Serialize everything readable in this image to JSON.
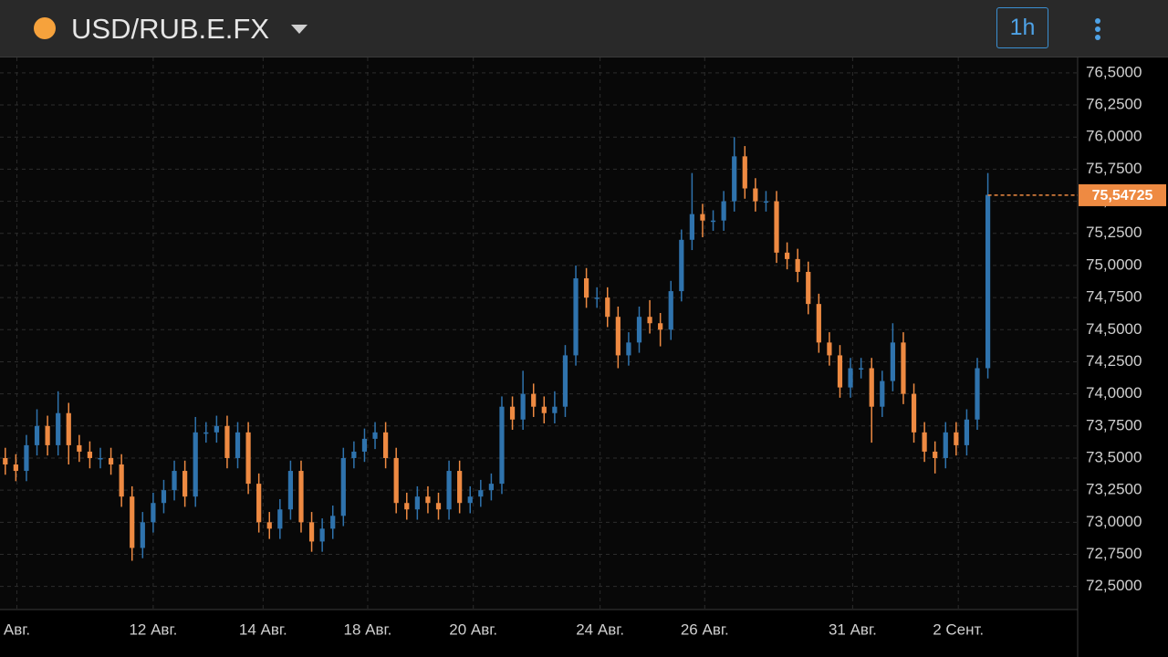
{
  "header": {
    "symbol": "USD/RUB.E.FX",
    "interval": "1h"
  },
  "chart_data": {
    "type": "candlestick",
    "up_color": "#2f73ad",
    "down_color": "#ee8a42",
    "grid": true,
    "ylim": [
      72.32,
      76.62
    ],
    "yticks": [
      {
        "value": 72.5,
        "label": "72,5000"
      },
      {
        "value": 72.75,
        "label": "72,7500"
      },
      {
        "value": 73,
        "label": "73,0000"
      },
      {
        "value": 73.25,
        "label": "73,2500"
      },
      {
        "value": 73.5,
        "label": "73,5000"
      },
      {
        "value": 73.75,
        "label": "73,7500"
      },
      {
        "value": 74,
        "label": "74,0000"
      },
      {
        "value": 74.25,
        "label": "74,2500"
      },
      {
        "value": 74.5,
        "label": "74,5000"
      },
      {
        "value": 74.75,
        "label": "74,7500"
      },
      {
        "value": 75,
        "label": "75,0000"
      },
      {
        "value": 75.25,
        "label": "75,2500"
      },
      {
        "value": 75.5,
        "label": "75,5000"
      },
      {
        "value": 75.75,
        "label": "75,7500"
      },
      {
        "value": 76,
        "label": "76,0000"
      },
      {
        "value": 76.25,
        "label": "76,2500"
      },
      {
        "value": 76.5,
        "label": "76,5000"
      }
    ],
    "xlim": [
      0,
      102
    ],
    "xticks": [
      {
        "value": 1.6,
        "label": "Авг."
      },
      {
        "value": 14.5,
        "label": "12 Авг."
      },
      {
        "value": 24.9,
        "label": "14 Авг."
      },
      {
        "value": 34.8,
        "label": "18 Авг."
      },
      {
        "value": 44.8,
        "label": "20 Авг."
      },
      {
        "value": 56.8,
        "label": "24 Авг."
      },
      {
        "value": 66.7,
        "label": "26 Авг."
      },
      {
        "value": 80.7,
        "label": "31 Авг."
      },
      {
        "value": 90.7,
        "label": "2 Сент."
      }
    ],
    "last_price": {
      "value": 75.54725,
      "label": "75,54725"
    },
    "ohlc": [
      [
        73.5,
        73.58,
        73.37,
        73.45
      ],
      [
        73.45,
        73.53,
        73.32,
        73.4
      ],
      [
        73.4,
        73.68,
        73.32,
        73.6
      ],
      [
        73.6,
        73.88,
        73.52,
        73.75
      ],
      [
        73.75,
        73.83,
        73.52,
        73.6
      ],
      [
        73.6,
        74.02,
        73.52,
        73.85
      ],
      [
        73.85,
        73.93,
        73.45,
        73.6
      ],
      [
        73.6,
        73.68,
        73.47,
        73.55
      ],
      [
        73.55,
        73.63,
        73.42,
        73.5
      ],
      [
        73.5,
        73.58,
        73.42,
        73.5
      ],
      [
        73.5,
        73.58,
        73.37,
        73.45
      ],
      [
        73.45,
        73.53,
        73.12,
        73.2
      ],
      [
        73.2,
        73.28,
        72.7,
        72.8
      ],
      [
        72.8,
        73.08,
        72.72,
        73.0
      ],
      [
        73.0,
        73.23,
        72.92,
        73.15
      ],
      [
        73.15,
        73.33,
        73.07,
        73.25
      ],
      [
        73.25,
        73.48,
        73.17,
        73.4
      ],
      [
        73.4,
        73.48,
        73.12,
        73.2
      ],
      [
        73.2,
        73.82,
        73.12,
        73.7
      ],
      [
        73.7,
        73.78,
        73.62,
        73.7
      ],
      [
        73.7,
        73.83,
        73.62,
        73.75
      ],
      [
        73.75,
        73.83,
        73.42,
        73.5
      ],
      [
        73.5,
        73.78,
        73.42,
        73.7
      ],
      [
        73.7,
        73.78,
        73.22,
        73.3
      ],
      [
        73.3,
        73.38,
        72.92,
        73.0
      ],
      [
        73.0,
        73.08,
        72.87,
        72.95
      ],
      [
        72.95,
        73.18,
        72.87,
        73.1
      ],
      [
        73.1,
        73.48,
        73.02,
        73.4
      ],
      [
        73.4,
        73.48,
        72.92,
        73.0
      ],
      [
        73.0,
        73.08,
        72.77,
        72.85
      ],
      [
        72.85,
        73.03,
        72.77,
        72.95
      ],
      [
        72.95,
        73.13,
        72.87,
        73.05
      ],
      [
        73.05,
        73.58,
        72.97,
        73.5
      ],
      [
        73.5,
        73.63,
        73.42,
        73.55
      ],
      [
        73.55,
        73.73,
        73.47,
        73.65
      ],
      [
        73.65,
        73.78,
        73.57,
        73.7
      ],
      [
        73.7,
        73.78,
        73.42,
        73.5
      ],
      [
        73.5,
        73.58,
        73.07,
        73.15
      ],
      [
        73.15,
        73.23,
        73.02,
        73.1
      ],
      [
        73.1,
        73.28,
        73.02,
        73.2
      ],
      [
        73.2,
        73.28,
        73.07,
        73.15
      ],
      [
        73.15,
        73.23,
        73.02,
        73.1
      ],
      [
        73.1,
        73.48,
        73.02,
        73.4
      ],
      [
        73.4,
        73.48,
        73.07,
        73.15
      ],
      [
        73.15,
        73.28,
        73.07,
        73.2
      ],
      [
        73.2,
        73.33,
        73.12,
        73.25
      ],
      [
        73.25,
        73.38,
        73.17,
        73.3
      ],
      [
        73.3,
        73.98,
        73.22,
        73.9
      ],
      [
        73.9,
        73.98,
        73.72,
        73.8
      ],
      [
        73.8,
        74.18,
        73.72,
        74.0
      ],
      [
        74.0,
        74.08,
        73.82,
        73.9
      ],
      [
        73.9,
        73.98,
        73.77,
        73.85
      ],
      [
        73.85,
        74.02,
        73.77,
        73.9
      ],
      [
        73.9,
        74.38,
        73.82,
        74.3
      ],
      [
        74.3,
        75.0,
        74.22,
        74.9
      ],
      [
        74.9,
        74.98,
        74.67,
        74.75
      ],
      [
        74.75,
        74.83,
        74.67,
        74.75
      ],
      [
        74.75,
        74.83,
        74.52,
        74.6
      ],
      [
        74.6,
        74.68,
        74.2,
        74.3
      ],
      [
        74.3,
        74.48,
        74.22,
        74.4
      ],
      [
        74.4,
        74.68,
        74.32,
        74.6
      ],
      [
        74.6,
        74.73,
        74.47,
        74.55
      ],
      [
        74.55,
        74.63,
        74.37,
        74.5
      ],
      [
        74.5,
        74.88,
        74.42,
        74.8
      ],
      [
        74.8,
        75.28,
        74.72,
        75.2
      ],
      [
        75.2,
        75.72,
        75.12,
        75.4
      ],
      [
        75.4,
        75.48,
        75.22,
        75.35
      ],
      [
        75.35,
        75.43,
        75.27,
        75.35
      ],
      [
        75.35,
        75.58,
        75.27,
        75.5
      ],
      [
        75.5,
        76.0,
        75.42,
        75.85
      ],
      [
        75.85,
        75.93,
        75.52,
        75.6
      ],
      [
        75.6,
        75.68,
        75.42,
        75.5
      ],
      [
        75.5,
        75.58,
        75.42,
        75.5
      ],
      [
        75.5,
        75.58,
        75.02,
        75.1
      ],
      [
        75.1,
        75.18,
        74.97,
        75.05
      ],
      [
        75.05,
        75.13,
        74.87,
        74.95
      ],
      [
        74.95,
        75.03,
        74.62,
        74.7
      ],
      [
        74.7,
        74.78,
        74.32,
        74.4
      ],
      [
        74.4,
        74.48,
        74.22,
        74.3
      ],
      [
        74.3,
        74.38,
        73.97,
        74.05
      ],
      [
        74.05,
        74.28,
        73.97,
        74.2
      ],
      [
        74.2,
        74.28,
        74.12,
        74.2
      ],
      [
        74.2,
        74.28,
        73.62,
        73.9
      ],
      [
        73.9,
        74.18,
        73.82,
        74.1
      ],
      [
        74.1,
        74.55,
        74.02,
        74.4
      ],
      [
        74.4,
        74.48,
        73.92,
        74.0
      ],
      [
        74.0,
        74.08,
        73.62,
        73.7
      ],
      [
        73.7,
        73.78,
        73.47,
        73.55
      ],
      [
        73.55,
        73.63,
        73.38,
        73.5
      ],
      [
        73.5,
        73.78,
        73.42,
        73.7
      ],
      [
        73.7,
        73.78,
        73.52,
        73.6
      ],
      [
        73.6,
        73.88,
        73.52,
        73.8
      ],
      [
        73.8,
        74.28,
        73.72,
        74.2
      ],
      [
        74.2,
        75.72,
        74.12,
        75.55
      ]
    ]
  }
}
